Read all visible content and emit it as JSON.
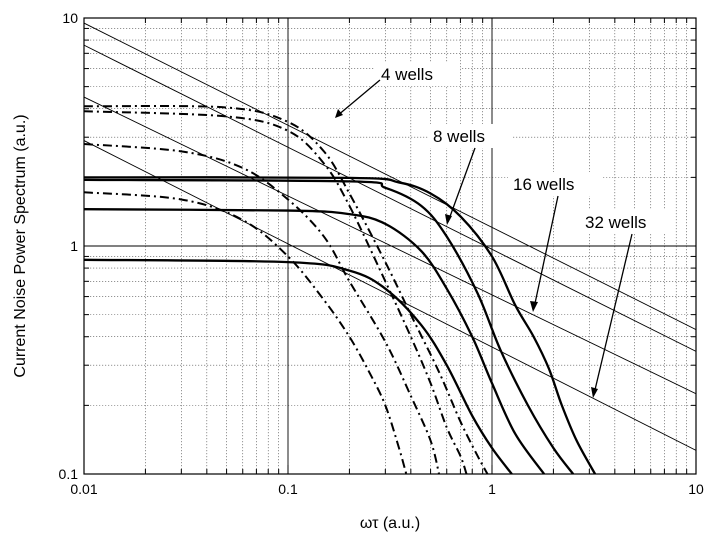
{
  "chart_data": {
    "type": "line",
    "xscale": "log",
    "yscale": "log",
    "xlim": [
      0.01,
      10
    ],
    "ylim": [
      0.1,
      10
    ],
    "grid": true,
    "xlabel": "ωτ (a.u.)",
    "ylabel": "Current Noise Power Spectrum (a.u.)",
    "x_ticks": [
      "0.01",
      "0.1",
      "1",
      "10"
    ],
    "y_ticks": [
      "0.1",
      "1",
      "10"
    ],
    "annotations": [
      {
        "text": "4 wells",
        "arrow_to": [
          0.18,
          4.0
        ]
      },
      {
        "text": "8 wells",
        "arrow_to": [
          0.72,
          1.35
        ]
      },
      {
        "text": "16 wells",
        "arrow_to": [
          1.85,
          0.36
        ]
      },
      {
        "text": "32 wells",
        "arrow_to": [
          4.2,
          0.183
        ]
      }
    ],
    "series": [
      {
        "style": "thin-solid",
        "points": [
          [
            0.01,
            9.5
          ],
          [
            10,
            0.43
          ]
        ]
      },
      {
        "style": "thin-solid",
        "points": [
          [
            0.01,
            7.6
          ],
          [
            10,
            0.345
          ]
        ]
      },
      {
        "style": "thin-solid",
        "points": [
          [
            0.01,
            4.5
          ],
          [
            10,
            0.225
          ]
        ]
      },
      {
        "style": "thin-solid",
        "points": [
          [
            0.01,
            2.9
          ],
          [
            10,
            0.127
          ]
        ]
      },
      {
        "style": "thick-solid",
        "points": [
          [
            0.01,
            2.0
          ],
          [
            0.2,
            1.99
          ],
          [
            0.35,
            1.9
          ],
          [
            0.5,
            1.7
          ],
          [
            0.7,
            1.35
          ],
          [
            1.0,
            0.9
          ],
          [
            1.3,
            0.55
          ],
          [
            1.6,
            0.4
          ],
          [
            1.9,
            0.29
          ],
          [
            2.2,
            0.2
          ],
          [
            2.6,
            0.14
          ],
          [
            3.2,
            0.1
          ]
        ]
      },
      {
        "style": "thick-solid",
        "points": [
          [
            0.01,
            1.95
          ],
          [
            0.2,
            1.92
          ],
          [
            0.3,
            1.8
          ],
          [
            0.45,
            1.5
          ],
          [
            0.6,
            1.1
          ],
          [
            0.85,
            0.62
          ],
          [
            1.1,
            0.35
          ],
          [
            1.5,
            0.2
          ],
          [
            2.0,
            0.13
          ],
          [
            2.5,
            0.1
          ]
        ]
      },
      {
        "style": "thick-solid",
        "points": [
          [
            0.01,
            1.45
          ],
          [
            0.1,
            1.43
          ],
          [
            0.2,
            1.38
          ],
          [
            0.3,
            1.25
          ],
          [
            0.45,
            0.95
          ],
          [
            0.6,
            0.65
          ],
          [
            0.8,
            0.4
          ],
          [
            1.0,
            0.25
          ],
          [
            1.3,
            0.15
          ],
          [
            1.8,
            0.1
          ]
        ]
      },
      {
        "style": "thick-solid",
        "points": [
          [
            0.01,
            0.87
          ],
          [
            0.1,
            0.85
          ],
          [
            0.2,
            0.78
          ],
          [
            0.3,
            0.65
          ],
          [
            0.45,
            0.45
          ],
          [
            0.6,
            0.3
          ],
          [
            0.8,
            0.18
          ],
          [
            1.0,
            0.13
          ],
          [
            1.25,
            0.1
          ]
        ]
      },
      {
        "style": "dash-dot",
        "points": [
          [
            0.01,
            4.1
          ],
          [
            0.05,
            4.05
          ],
          [
            0.1,
            3.5
          ],
          [
            0.15,
            2.6
          ],
          [
            0.2,
            1.7
          ],
          [
            0.3,
            0.85
          ],
          [
            0.4,
            0.5
          ],
          [
            0.55,
            0.28
          ],
          [
            0.7,
            0.17
          ],
          [
            0.85,
            0.12
          ],
          [
            0.95,
            0.1
          ]
        ]
      },
      {
        "style": "dash-dot",
        "points": [
          [
            0.01,
            3.9
          ],
          [
            0.05,
            3.7
          ],
          [
            0.1,
            3.2
          ],
          [
            0.15,
            2.3
          ],
          [
            0.2,
            1.5
          ],
          [
            0.3,
            0.7
          ],
          [
            0.4,
            0.4
          ],
          [
            0.5,
            0.25
          ],
          [
            0.6,
            0.16
          ],
          [
            0.7,
            0.12
          ],
          [
            0.75,
            0.1
          ]
        ]
      },
      {
        "style": "dash-dot",
        "points": [
          [
            0.01,
            2.8
          ],
          [
            0.03,
            2.6
          ],
          [
            0.06,
            2.2
          ],
          [
            0.1,
            1.6
          ],
          [
            0.15,
            1.1
          ],
          [
            0.2,
            0.7
          ],
          [
            0.3,
            0.38
          ],
          [
            0.4,
            0.22
          ],
          [
            0.5,
            0.14
          ],
          [
            0.55,
            0.1
          ]
        ]
      },
      {
        "style": "dash-dot",
        "points": [
          [
            0.01,
            1.72
          ],
          [
            0.03,
            1.6
          ],
          [
            0.06,
            1.3
          ],
          [
            0.1,
            0.9
          ],
          [
            0.15,
            0.58
          ],
          [
            0.2,
            0.4
          ],
          [
            0.25,
            0.28
          ],
          [
            0.3,
            0.2
          ],
          [
            0.35,
            0.13
          ],
          [
            0.38,
            0.1
          ]
        ]
      }
    ]
  }
}
